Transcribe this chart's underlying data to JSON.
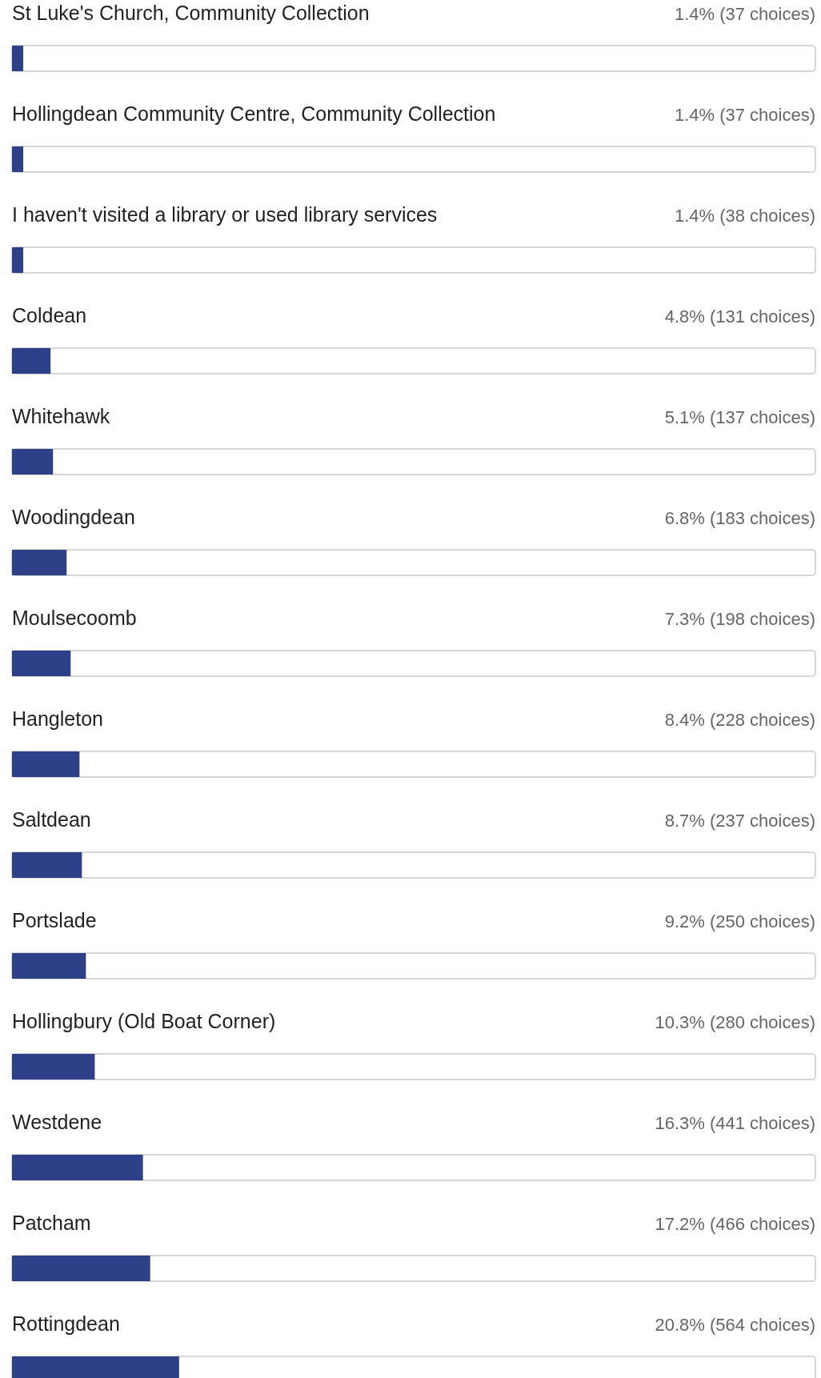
{
  "chart_data": {
    "type": "bar",
    "orientation": "horizontal",
    "categories": [
      "St Luke's Church, Community Collection",
      "Hollingdean Community Centre, Community Collection",
      "I haven't visited a library or used library services",
      "Coldean",
      "Whitehawk",
      "Woodingdean",
      "Moulsecoomb",
      "Hangleton",
      "Saltdean",
      "Portslade",
      "Hollingbury (Old Boat Corner)",
      "Westdene",
      "Patcham",
      "Rottingdean"
    ],
    "values": [
      1.4,
      1.4,
      1.4,
      4.8,
      5.1,
      6.8,
      7.3,
      8.4,
      8.7,
      9.2,
      10.3,
      16.3,
      17.2,
      20.8
    ],
    "value_labels": [
      "1.4% (37 choices)",
      "1.4% (37 choices)",
      "1.4% (38 choices)",
      "4.8% (131 choices)",
      "5.1% (137 choices)",
      "6.8% (183 choices)",
      "7.3% (198 choices)",
      "8.4% (228 choices)",
      "8.7% (237 choices)",
      "9.2% (250 choices)",
      "10.3% (280 choices)",
      "16.3% (441 choices)",
      "17.2% (466 choices)",
      "20.8% (564 choices)"
    ],
    "color": "#2e4188",
    "xlim": [
      0,
      100
    ],
    "tick_labels": false
  }
}
